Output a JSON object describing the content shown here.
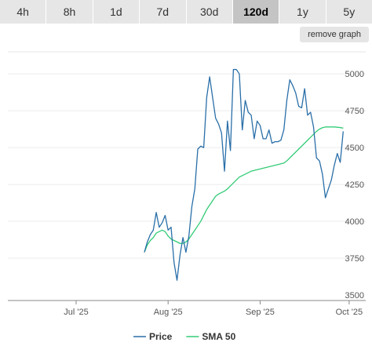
{
  "tabs": [
    {
      "label": "4h",
      "active": false
    },
    {
      "label": "8h",
      "active": false
    },
    {
      "label": "1d",
      "active": false
    },
    {
      "label": "7d",
      "active": false
    },
    {
      "label": "30d",
      "active": false
    },
    {
      "label": "120d",
      "active": true
    },
    {
      "label": "1y",
      "active": false
    },
    {
      "label": "5y",
      "active": false
    }
  ],
  "remove_graph_label": "remove graph",
  "chart_data": {
    "type": "line",
    "x_axis": {
      "type": "date",
      "range": [
        "2025-06-08",
        "2025-10-05"
      ],
      "ticks": [
        {
          "date": "2025-07-01",
          "label": "Jul '25"
        },
        {
          "date": "2025-08-01",
          "label": "Aug '25"
        },
        {
          "date": "2025-09-01",
          "label": "Sep '25"
        },
        {
          "date": "2025-10-01",
          "label": "Oct '25"
        }
      ]
    },
    "y_axis": {
      "position": "right",
      "ylim": [
        3500,
        5150
      ],
      "ticks": [
        3500,
        3750,
        4000,
        4250,
        4500,
        4750,
        5000
      ]
    },
    "grid": "horizontal",
    "legend_position": "bottom-center",
    "series": [
      {
        "name": "Price",
        "color": "#2a6fa8",
        "points": [
          [
            "2025-07-24",
            3790
          ],
          [
            "2025-07-25",
            3860
          ],
          [
            "2025-07-26",
            3910
          ],
          [
            "2025-07-27",
            3940
          ],
          [
            "2025-07-28",
            4060
          ],
          [
            "2025-07-29",
            3960
          ],
          [
            "2025-07-30",
            3990
          ],
          [
            "2025-07-31",
            4040
          ],
          [
            "2025-08-01",
            3940
          ],
          [
            "2025-08-02",
            3960
          ],
          [
            "2025-08-03",
            3720
          ],
          [
            "2025-08-04",
            3600
          ],
          [
            "2025-08-05",
            3770
          ],
          [
            "2025-08-06",
            3890
          ],
          [
            "2025-08-07",
            3790
          ],
          [
            "2025-08-08",
            3900
          ],
          [
            "2025-08-09",
            4100
          ],
          [
            "2025-08-10",
            4220
          ],
          [
            "2025-08-11",
            4490
          ],
          [
            "2025-08-12",
            4510
          ],
          [
            "2025-08-13",
            4500
          ],
          [
            "2025-08-14",
            4840
          ],
          [
            "2025-08-15",
            4980
          ],
          [
            "2025-08-16",
            4840
          ],
          [
            "2025-08-17",
            4700
          ],
          [
            "2025-08-18",
            4660
          ],
          [
            "2025-08-19",
            4600
          ],
          [
            "2025-08-20",
            4340
          ],
          [
            "2025-08-21",
            4680
          ],
          [
            "2025-08-22",
            4480
          ],
          [
            "2025-08-23",
            5030
          ],
          [
            "2025-08-24",
            5030
          ],
          [
            "2025-08-25",
            5000
          ],
          [
            "2025-08-26",
            4620
          ],
          [
            "2025-08-27",
            4820
          ],
          [
            "2025-08-28",
            4740
          ],
          [
            "2025-08-29",
            4720
          ],
          [
            "2025-08-30",
            4560
          ],
          [
            "2025-08-31",
            4680
          ],
          [
            "2025-09-01",
            4650
          ],
          [
            "2025-09-02",
            4560
          ],
          [
            "2025-09-03",
            4560
          ],
          [
            "2025-09-04",
            4620
          ],
          [
            "2025-09-05",
            4530
          ],
          [
            "2025-09-06",
            4540
          ],
          [
            "2025-09-07",
            4540
          ],
          [
            "2025-09-08",
            4550
          ],
          [
            "2025-09-09",
            4620
          ],
          [
            "2025-09-10",
            4820
          ],
          [
            "2025-09-11",
            4960
          ],
          [
            "2025-09-12",
            4920
          ],
          [
            "2025-09-13",
            4870
          ],
          [
            "2025-09-14",
            4780
          ],
          [
            "2025-09-15",
            4770
          ],
          [
            "2025-09-16",
            4900
          ],
          [
            "2025-09-17",
            4720
          ],
          [
            "2025-09-18",
            4740
          ],
          [
            "2025-09-19",
            4640
          ],
          [
            "2025-09-20",
            4430
          ],
          [
            "2025-09-21",
            4410
          ],
          [
            "2025-09-22",
            4320
          ],
          [
            "2025-09-23",
            4160
          ],
          [
            "2025-09-24",
            4220
          ],
          [
            "2025-09-25",
            4280
          ],
          [
            "2025-09-26",
            4380
          ],
          [
            "2025-09-27",
            4460
          ],
          [
            "2025-09-28",
            4400
          ],
          [
            "2025-09-29",
            4610
          ]
        ]
      },
      {
        "name": "SMA 50",
        "color": "#33cc77",
        "points": [
          [
            "2025-07-24",
            3790
          ],
          [
            "2025-07-25",
            3840
          ],
          [
            "2025-07-26",
            3870
          ],
          [
            "2025-07-27",
            3890
          ],
          [
            "2025-07-28",
            3920
          ],
          [
            "2025-07-29",
            3930
          ],
          [
            "2025-07-30",
            3940
          ],
          [
            "2025-07-31",
            3930
          ],
          [
            "2025-08-01",
            3900
          ],
          [
            "2025-08-02",
            3880
          ],
          [
            "2025-08-03",
            3870
          ],
          [
            "2025-08-04",
            3860
          ],
          [
            "2025-08-05",
            3850
          ],
          [
            "2025-08-06",
            3850
          ],
          [
            "2025-08-07",
            3860
          ],
          [
            "2025-08-08",
            3880
          ],
          [
            "2025-08-09",
            3910
          ],
          [
            "2025-08-10",
            3940
          ],
          [
            "2025-08-11",
            3970
          ],
          [
            "2025-08-12",
            4000
          ],
          [
            "2025-08-13",
            4040
          ],
          [
            "2025-08-14",
            4080
          ],
          [
            "2025-08-15",
            4110
          ],
          [
            "2025-08-16",
            4140
          ],
          [
            "2025-08-17",
            4170
          ],
          [
            "2025-08-18",
            4185
          ],
          [
            "2025-08-19",
            4195
          ],
          [
            "2025-08-20",
            4205
          ],
          [
            "2025-08-21",
            4220
          ],
          [
            "2025-08-22",
            4240
          ],
          [
            "2025-08-23",
            4260
          ],
          [
            "2025-08-24",
            4280
          ],
          [
            "2025-08-25",
            4300
          ],
          [
            "2025-08-26",
            4310
          ],
          [
            "2025-08-27",
            4320
          ],
          [
            "2025-08-28",
            4330
          ],
          [
            "2025-08-29",
            4340
          ],
          [
            "2025-08-30",
            4345
          ],
          [
            "2025-08-31",
            4350
          ],
          [
            "2025-09-01",
            4355
          ],
          [
            "2025-09-02",
            4360
          ],
          [
            "2025-09-03",
            4365
          ],
          [
            "2025-09-04",
            4370
          ],
          [
            "2025-09-05",
            4375
          ],
          [
            "2025-09-06",
            4380
          ],
          [
            "2025-09-07",
            4385
          ],
          [
            "2025-09-08",
            4390
          ],
          [
            "2025-09-09",
            4395
          ],
          [
            "2025-09-10",
            4410
          ],
          [
            "2025-09-11",
            4430
          ],
          [
            "2025-09-12",
            4450
          ],
          [
            "2025-09-13",
            4470
          ],
          [
            "2025-09-14",
            4490
          ],
          [
            "2025-09-15",
            4510
          ],
          [
            "2025-09-16",
            4530
          ],
          [
            "2025-09-17",
            4550
          ],
          [
            "2025-09-18",
            4570
          ],
          [
            "2025-09-19",
            4590
          ],
          [
            "2025-09-20",
            4610
          ],
          [
            "2025-09-21",
            4625
          ],
          [
            "2025-09-22",
            4635
          ],
          [
            "2025-09-23",
            4640
          ],
          [
            "2025-09-24",
            4640
          ],
          [
            "2025-09-25",
            4640
          ],
          [
            "2025-09-26",
            4640
          ],
          [
            "2025-09-27",
            4638
          ],
          [
            "2025-09-28",
            4636
          ],
          [
            "2025-09-29",
            4632
          ]
        ]
      }
    ]
  }
}
